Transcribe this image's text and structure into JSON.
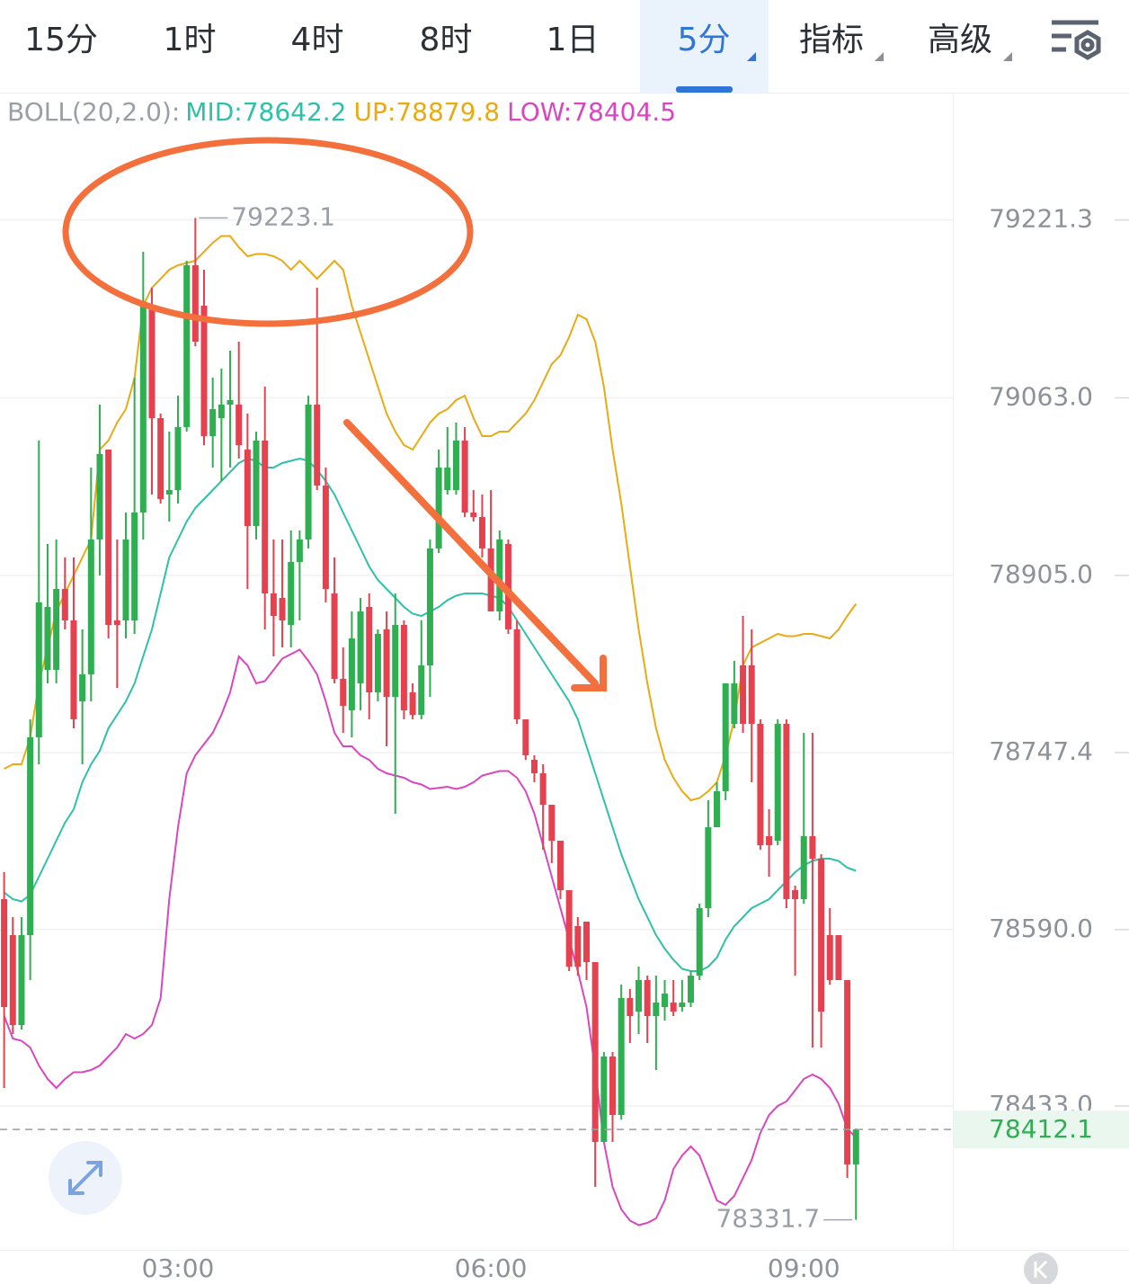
{
  "tabs": [
    "15分",
    "1时",
    "4时",
    "8时",
    "1日",
    "5分",
    "指标",
    "高级"
  ],
  "active_tab": 5,
  "chart_data": {
    "type": "candlestick",
    "indicator": "BOLL(20,2.0):",
    "categories": [
      null,
      null,
      null,
      null,
      null,
      null,
      null,
      null,
      null,
      null,
      null,
      null,
      null,
      null,
      null,
      null,
      null,
      null,
      null,
      null,
      "03:00",
      null,
      null,
      null,
      null,
      null,
      null,
      null,
      null,
      null,
      null,
      null,
      null,
      null,
      null,
      null,
      null,
      null,
      null,
      null,
      null,
      null,
      null,
      null,
      null,
      null,
      null,
      null,
      null,
      null,
      null,
      null,
      null,
      null,
      null,
      null,
      "06:00",
      null,
      null,
      null,
      null,
      null,
      null,
      null,
      null,
      null,
      null,
      null,
      null,
      null,
      null,
      null,
      null,
      null,
      null,
      null,
      null,
      null,
      null,
      null,
      null,
      null,
      null,
      null,
      null,
      null,
      null,
      null,
      null,
      null,
      null,
      null,
      "09:00",
      null,
      null,
      null,
      null,
      null,
      null
    ],
    "open": [
      78617,
      78585,
      78505,
      78585,
      78761,
      78821,
      78821,
      78893,
      78865,
      78793,
      78817,
      78937,
      79017,
      78865,
      78865,
      78865,
      78961,
      79145,
      79045,
      78977,
      78981,
      79037,
      79181,
      79145,
      79029,
      79045,
      79057,
      79057,
      79017,
      78949,
      79025,
      78889,
      78885,
      78861,
      78917,
      78937,
      79057,
      78985,
      78889,
      78813,
      78785,
      78809,
      78877,
      78801,
      78857,
      78797,
      78861,
      78801,
      78781,
      78825,
      78929,
      78981,
      78981,
      79025,
      78961,
      78957,
      78929,
      78873,
      78933,
      78857,
      78777,
      78741,
      78729,
      78701,
      78669,
      78625,
      78593,
      78597,
      78561,
      78401,
      78477,
      78425,
      78529,
      78517,
      78545,
      78513,
      78521,
      78525,
      78521,
      78525,
      78549,
      78609,
      78681,
      78713,
      78773,
      78825,
      78825,
      78773,
      78673,
      78669,
      78773,
      78625,
      78617,
      78673,
      78653,
      78585,
      78585,
      78545,
      78381
    ],
    "high": [
      78641,
      78601,
      78601,
      78777,
      79025,
      78933,
      78937,
      78921,
      78921,
      78857,
      79001,
      79057,
      79017,
      78937,
      78961,
      79081,
      79193,
      79161,
      79049,
      79033,
      79065,
      79185,
      79223.1,
      79177,
      79081,
      79089,
      79105,
      79113,
      79049,
      79033,
      79073,
      78937,
      78937,
      78945,
      78945,
      79065,
      79161,
      79001,
      78921,
      78841,
      78873,
      78885,
      78889,
      78857,
      78873,
      78889,
      78865,
      78809,
      78865,
      78937,
      79017,
      79037,
      79041,
      79037,
      78981,
      78977,
      78981,
      78945,
      78937,
      78865,
      78777,
      78745,
      78737,
      78701,
      78669,
      78625,
      78601,
      78597,
      78561,
      78481,
      78481,
      78541,
      78537,
      78557,
      78549,
      78549,
      78545,
      78545,
      78545,
      78553,
      78613,
      78705,
      78721,
      78809,
      78829,
      78869,
      78857,
      78777,
      78697,
      78777,
      78777,
      78629,
      78765,
      78765,
      78657,
      78609,
      78585,
      78545,
      78413
    ],
    "low": [
      78449,
      78497,
      78501,
      78545,
      78737,
      78809,
      78809,
      78857,
      78769,
      78737,
      78793,
      78905,
      78849,
      78805,
      78849,
      78853,
      78937,
      78977,
      78969,
      78953,
      78969,
      79033,
      79109,
      79021,
      79001,
      78989,
      79001,
      79009,
      78893,
      78937,
      78857,
      78833,
      78841,
      78841,
      78865,
      78929,
      78981,
      78881,
      78809,
      78765,
      78761,
      78785,
      78777,
      78793,
      78753,
      78693,
      78777,
      78777,
      78777,
      78797,
      78925,
      78977,
      78977,
      78957,
      78953,
      78921,
      78873,
      78865,
      78853,
      78773,
      78741,
      78721,
      78661,
      78649,
      78617,
      78553,
      78549,
      78545,
      78361,
      78401,
      78401,
      78421,
      78489,
      78497,
      78489,
      78465,
      78509,
      78513,
      78517,
      78521,
      78545,
      78601,
      78681,
      78705,
      78769,
      78765,
      78721,
      78661,
      78637,
      78665,
      78609,
      78549,
      78613,
      78485,
      78485,
      78541,
      78545,
      78369,
      78331.7
    ],
    "close": [
      78521,
      78505,
      78585,
      78761,
      78881,
      78877,
      78893,
      78865,
      78777,
      78817,
      78937,
      79013,
      78861,
      78861,
      78937,
      78961,
      79145,
      79045,
      78973,
      78981,
      79037,
      79181,
      79113,
      79029,
      79053,
      79057,
      79061,
      79021,
      78949,
      79025,
      78889,
      78869,
      78865,
      78917,
      78937,
      79057,
      78985,
      78893,
      78813,
      78789,
      78849,
      78873,
      78801,
      78853,
      78797,
      78861,
      78785,
      78781,
      78825,
      78929,
      79001,
      79001,
      79025,
      78961,
      78957,
      78929,
      78873,
      78937,
      78857,
      78777,
      78745,
      78729,
      78701,
      78669,
      78625,
      78557,
      78557,
      78561,
      78401,
      78477,
      78425,
      78529,
      78513,
      78545,
      78513,
      78525,
      78533,
      78517,
      78525,
      78549,
      78609,
      78681,
      78713,
      78809,
      78809,
      78773,
      78773,
      78665,
      78665,
      78773,
      78617,
      78617,
      78673,
      78653,
      78517,
      78545,
      78545,
      78381,
      78412.1
    ],
    "up_color": "#2fae52",
    "down_color": "#e5414f",
    "series": [
      {
        "name": "MID:78642.2",
        "color": "#2ec0a8",
        "values": [
          78623,
          78617,
          78615,
          78621,
          78637,
          78653,
          78669,
          78685,
          78697,
          78721,
          78737,
          78749,
          78769,
          78781,
          78793,
          78809,
          78833,
          78857,
          78889,
          78921,
          78937,
          78953,
          78965,
          78973,
          78981,
          78989,
          78997,
          79005,
          79009,
          79007,
          79001,
          79001,
          79005,
          79007,
          79009,
          79007,
          78999,
          78989,
          78977,
          78961,
          78945,
          78929,
          78913,
          78901,
          78893,
          78885,
          78877,
          78871,
          78869,
          78873,
          78877,
          78883,
          78887,
          78889,
          78889,
          78889,
          78887,
          78885,
          78877,
          78865,
          78853,
          78841,
          78829,
          78817,
          78805,
          78793,
          78777,
          78753,
          78729,
          78705,
          78681,
          78657,
          78637,
          78617,
          78601,
          78585,
          78573,
          78563,
          78555,
          78553,
          78553,
          78557,
          78565,
          78581,
          78593,
          78601,
          78609,
          78613,
          78617,
          78625,
          78633,
          78641,
          78647,
          78651,
          78653,
          78653,
          78651,
          78645,
          78642.2
        ]
      },
      {
        "name": "UP:78879.8",
        "color": "#e9aa14",
        "values": [
          78733,
          78737,
          78737,
          78761,
          78809,
          78841,
          78873,
          78889,
          78905,
          78921,
          78937,
          79017,
          79025,
          79041,
          79053,
          79081,
          79145,
          79161,
          79169,
          79177,
          79181,
          79183,
          79185,
          79193,
          79201,
          79207,
          79207,
          79197,
          79189,
          79191,
          79191,
          79189,
          79185,
          79177,
          79185,
          79177,
          79169,
          79177,
          79185,
          79177,
          79145,
          79121,
          79097,
          79073,
          79049,
          79033,
          79021,
          79017,
          79029,
          79041,
          79049,
          79053,
          79061,
          79065,
          79045,
          79029,
          79029,
          79033,
          79033,
          79041,
          79049,
          79061,
          79077,
          79093,
          79101,
          79117,
          79137,
          79133,
          79113,
          79073,
          79017,
          78969,
          78913,
          78857,
          78809,
          78769,
          78741,
          78725,
          78713,
          78705,
          78707,
          78713,
          78721,
          78745,
          78777,
          78825,
          78841,
          78845,
          78849,
          78853,
          78851,
          78851,
          78853,
          78853,
          78851,
          78849,
          78857,
          78869,
          78879.8
        ]
      },
      {
        "name": "LOW:78404.5",
        "color": "#d847bf",
        "values": [
          78513,
          78493,
          78491,
          78485,
          78469,
          78457,
          78449,
          78457,
          78463,
          78463,
          78465,
          78469,
          78477,
          78485,
          78497,
          78493,
          78497,
          78505,
          78529,
          78617,
          78681,
          78729,
          78745,
          78755,
          78765,
          78781,
          78801,
          78833,
          78825,
          78809,
          78811,
          78821,
          78831,
          78835,
          78839,
          78829,
          78817,
          78793,
          78765,
          78753,
          78753,
          78745,
          78741,
          78733,
          78729,
          78727,
          78725,
          78721,
          78719,
          78715,
          78716,
          78717,
          78715,
          78717,
          78721,
          78727,
          78729,
          78731,
          78731,
          78725,
          78713,
          78693,
          78665,
          78637,
          78609,
          78581,
          78553,
          78521,
          78465,
          78401,
          78361,
          78341,
          78331,
          78327,
          78329,
          78333,
          78349,
          78377,
          78389,
          78397,
          78389,
          78369,
          78349,
          78345,
          78353,
          78369,
          78385,
          78409,
          78425,
          78433,
          78437,
          78447,
          78457,
          78461,
          78457,
          78449,
          78435,
          78413,
          78404.5
        ]
      }
    ],
    "ylim": [
      78305,
      79333
    ],
    "yticks": [
      79221.3,
      {
        "value": 79063,
        "label": "79063.0"
      },
      {
        "value": 78905,
        "label": "78905.0"
      },
      78747.4,
      {
        "value": 78590,
        "label": "78590.0"
      },
      {
        "value": 78433,
        "label": "78433.0"
      }
    ],
    "max_label": 79223.1,
    "min_label": 78331.7,
    "last_price": 78412.1,
    "grid": true
  }
}
